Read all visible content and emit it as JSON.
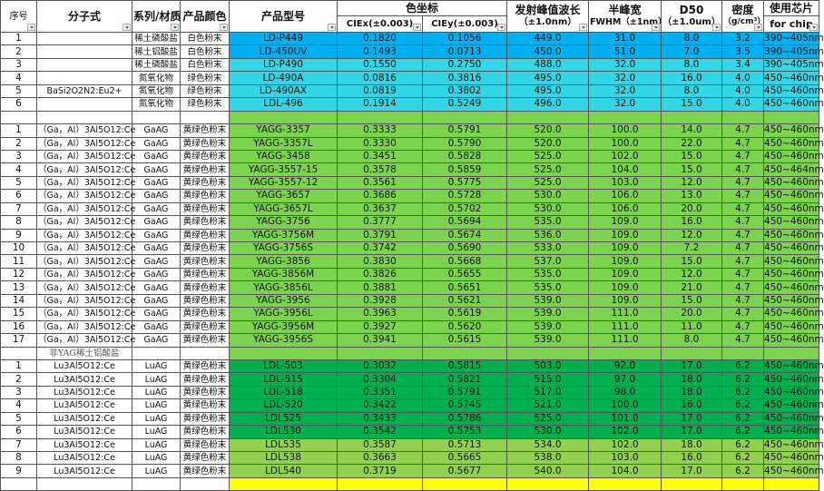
{
  "colors": {
    "blue": "#00b0f0",
    "cyan": "#31d7e6",
    "green": "#7cd44e",
    "dark_green": "#00b050",
    "light_green": "#92d050",
    "yellow": "#ffff00"
  },
  "header": {
    "seq": "序号",
    "formula": "分子式",
    "series": "系列/材质",
    "color": "产品颜色",
    "model": "产品型号",
    "cie": "色坐标",
    "ciex": "CIEx(±0.003)",
    "ciey": "CIEy(±0.003)",
    "wave": "发射峰值波长",
    "wave_sub": "（±1.0nm）",
    "fwhm": "半峰宽",
    "fwhm_sub": "FWHM（±1nm）",
    "d50": "D50",
    "d50_sub": "（±1.0um）",
    "density": "密度",
    "density_sub": "（g/cm³）",
    "chip": "使用芯片",
    "chip_sub": "for chip"
  },
  "rows": [
    {
      "c": "blue",
      "v": [
        "1",
        "",
        "稀土磷酸盐",
        "白色粉末",
        "LD-P449",
        "0.1820",
        "0.1056",
        "449.0",
        "31.0",
        "8.0",
        "3.2",
        "390~405nm"
      ]
    },
    {
      "c": "blue",
      "v": [
        "2",
        "",
        "稀土铝酸盐",
        "白色粉末",
        "LD-450UV",
        "0.1493",
        "0.0713",
        "450.0",
        "51.0",
        "7.0",
        "3.5",
        "390~405nm"
      ]
    },
    {
      "c": "cyan",
      "v": [
        "3",
        "",
        "稀土磷酸盐",
        "白色粉末",
        "LD-P490",
        "0.1550",
        "0.2750",
        "488.0",
        "32.0",
        "8.0",
        "3.4",
        "390~405nm"
      ]
    },
    {
      "c": "cyan",
      "v": [
        "4",
        "",
        "氮氧化物",
        "绿色粉末",
        "LD-490A",
        "0.0816",
        "0.3816",
        "495.0",
        "32.0",
        "16.0",
        "4.0",
        "450~460nm"
      ]
    },
    {
      "c": "cyan",
      "v": [
        "5",
        "BaSi2O2N2:Eu2+",
        "氮氧化物",
        "绿色粉末",
        "LD-490AX",
        "0.0819",
        "0.3802",
        "495.0",
        "32.0",
        "8.0",
        "4.0",
        "450~460nm"
      ]
    },
    {
      "c": "cyan",
      "v": [
        "6",
        "",
        "氮氧化物",
        "绿色粉末",
        "LDL-496",
        "0.1914",
        "0.5249",
        "496.0",
        "32.0",
        "15.0",
        "4.0",
        "450~460nm"
      ]
    },
    {
      "c": "green",
      "v": [
        "",
        "",
        "",
        "",
        "",
        "",
        "",
        "",
        "",
        "",
        "",
        ""
      ]
    },
    {
      "c": "green",
      "v": [
        "1",
        "（Ga，Al）3Al5O12:Ce",
        "GaAG",
        "黄绿色粉末",
        "YAGG-3357",
        "0.3333",
        "0.5791",
        "520.0",
        "100.0",
        "14.0",
        "4.7",
        "450~460nm"
      ]
    },
    {
      "c": "green",
      "v": [
        "2",
        "（Ga，Al）3Al5O12:Ce",
        "GaAG",
        "黄绿色粉末",
        "YAGG-3357L",
        "0.3330",
        "0.5790",
        "520.0",
        "100.0",
        "22.0",
        "4.7",
        "450~460nm"
      ]
    },
    {
      "c": "green",
      "v": [
        "3",
        "（Ga，Al）3Al5O12:Ce",
        "GaAG",
        "黄绿色粉末",
        "YAGG-3458",
        "0.3451",
        "0.5828",
        "525.0",
        "102.0",
        "15.0",
        "4.7",
        "450~460nm"
      ]
    },
    {
      "c": "green",
      "v": [
        "4",
        "（Ga，Al）3Al5O12:Ce",
        "GaAG",
        "黄绿色粉末",
        "YAGG-3557-15",
        "0.3578",
        "0.5859",
        "525.0",
        "104.0",
        "15.0",
        "4.7",
        "450~464nm"
      ]
    },
    {
      "c": "green",
      "v": [
        "5",
        "（Ga，Al）3Al5O12:Ce",
        "GaAG",
        "黄绿色粉末",
        "YAGG-3557-12",
        "0.3561",
        "0.5775",
        "525.0",
        "103.0",
        "12.0",
        "4.7",
        "450~460nm"
      ]
    },
    {
      "c": "green",
      "v": [
        "6",
        "（Ga，Al）3Al5O12:Ce",
        "GaAG",
        "黄绿色粉末",
        "YAGG-3657",
        "0.3686",
        "0.5728",
        "530.0",
        "106.0",
        "13.0",
        "4.7",
        "450~460nm"
      ]
    },
    {
      "c": "green",
      "v": [
        "7",
        "（Ga，Al）3Al5O12:Ce",
        "GaAG",
        "黄绿色粉末",
        "YAGG-3657L",
        "0.3637",
        "0.5702",
        "530.0",
        "106.0",
        "20.0",
        "4.7",
        "450~460nm"
      ]
    },
    {
      "c": "green",
      "v": [
        "8",
        "（Ga，Al）3Al5O12:Ce",
        "GaAG",
        "黄绿色粉末",
        "YAGG-3756",
        "0.3777",
        "0.5694",
        "535.0",
        "109.0",
        "16.0",
        "4.7",
        "450~460nm"
      ]
    },
    {
      "c": "green",
      "v": [
        "9",
        "（Ga，Al）3Al5O12:Ce",
        "GaAG",
        "黄绿色粉末",
        "YAGG-3756M",
        "0.3791",
        "0.5674",
        "536.0",
        "109.0",
        "12.0",
        "4.7",
        "450~460nm"
      ]
    },
    {
      "c": "green",
      "v": [
        "10",
        "（Ga，Al）3Al5O12:Ce",
        "GaAG",
        "黄绿色粉末",
        "YAGG-3756S",
        "0.3742",
        "0.5690",
        "533.0",
        "109.0",
        "7.2",
        "4.7",
        "450~460nm"
      ]
    },
    {
      "c": "green",
      "v": [
        "11",
        "（Ga，Al）3Al5O12:Ce",
        "GaAG",
        "黄绿色粉末",
        "YAGG-3856",
        "0.3830",
        "0.5668",
        "537.0",
        "109.0",
        "15.0",
        "4.7",
        "450~460nm"
      ]
    },
    {
      "c": "green",
      "v": [
        "12",
        "（Ga，Al）3Al5O12:Ce",
        "GaAG",
        "黄绿色粉末",
        "YAGG-3856M",
        "0.3826",
        "0.5655",
        "535.0",
        "109.0",
        "12.0",
        "4.7",
        "450~460nm"
      ]
    },
    {
      "c": "green",
      "v": [
        "13",
        "（Ga，Al）3Al5O12:Ce",
        "GaAG",
        "黄绿色粉末",
        "YAGG-3856L",
        "0.3881",
        "0.5651",
        "535.0",
        "109.0",
        "21.0",
        "4.7",
        "450~460nm"
      ]
    },
    {
      "c": "green",
      "v": [
        "14",
        "（Ga，Al）3Al5O12:Ce",
        "GaAG",
        "黄绿色粉末",
        "YAGG-3956",
        "0.3928",
        "0.5621",
        "539.0",
        "109.0",
        "15.0",
        "4.7",
        "450~460nm"
      ]
    },
    {
      "c": "green",
      "v": [
        "15",
        "（Ga，Al）3Al5O12:Ce",
        "GaAG",
        "黄绿色粉末",
        "YAGG-3956L",
        "0.3963",
        "0.5619",
        "539.0",
        "111.0",
        "20.0",
        "4.7",
        "450~460nm"
      ]
    },
    {
      "c": "green",
      "v": [
        "16",
        "（Ga，Al）3Al5O12:Ce",
        "GaAG",
        "黄绿色粉末",
        "YAGG-3956M",
        "0.3927",
        "0.5620",
        "539.0",
        "111.0",
        "11.0",
        "4.7",
        "450~460nm"
      ]
    },
    {
      "c": "green",
      "v": [
        "17",
        "（Ga，Al）3Al5O12:Ce",
        "GaAG",
        "黄绿色粉末",
        "YAGG-3956S",
        "0.3941",
        "0.5615",
        "539.0",
        "111.0",
        "8.0",
        "4.7",
        "450~460nm"
      ]
    },
    {
      "c": "green",
      "note": true,
      "v": [
        "",
        "非YAG稀土铝酸盐",
        "",
        "",
        "",
        "",
        "",
        "",
        "",
        "",
        "",
        ""
      ]
    },
    {
      "c": "dark_green",
      "v": [
        "1",
        "Lu3Al5O12:Ce",
        "LuAG",
        "黄绿色粉末",
        "LDL-503",
        "0.3032",
        "0.5815",
        "503.0",
        "92.0",
        "17.0",
        "6.2",
        "450~460nm"
      ]
    },
    {
      "c": "dark_green",
      "v": [
        "2",
        "Lu3Al5O12:Ce",
        "LuAG",
        "黄绿色粉末",
        "LDL-515",
        "0.3304",
        "0.5821",
        "515.0",
        "97.0",
        "18.0",
        "6.2",
        "450~460nm"
      ]
    },
    {
      "c": "dark_green",
      "v": [
        "3",
        "Lu3Al5O12:Ce",
        "LuAG",
        "黄绿色粉末",
        "LDL-518",
        "0.3351",
        "0.5791",
        "517.0",
        "98.0",
        "18.0",
        "6.2",
        "450~460nm"
      ]
    },
    {
      "c": "dark_green",
      "v": [
        "4",
        "Lu3Al5O12:Ce",
        "LuAG",
        "黄绿色粉末",
        "LDL-520",
        "0.3422",
        "0.5745",
        "521.0",
        "100.0",
        "16.0",
        "6.2",
        "450~460nm"
      ]
    },
    {
      "c": "dark_green",
      "v": [
        "5",
        "Lu3Al5O12:Ce",
        "LuAG",
        "黄绿色粉末",
        "LDL525",
        "0.3433",
        "0.5786",
        "525.0",
        "101.0",
        "17.0",
        "6.2",
        "450~460nm"
      ]
    },
    {
      "c": "dark_green",
      "v": [
        "6",
        "Lu3Al5O12:Ce",
        "LuAG",
        "黄绿色粉末",
        "LDL530",
        "0.3542",
        "0.5753",
        "530.0",
        "102.0",
        "17.0",
        "6.2",
        "450~460nm"
      ]
    },
    {
      "c": "light_green",
      "v": [
        "7",
        "Lu3Al5O12:Ce",
        "LuAG",
        "黄绿色粉末",
        "LDL535",
        "0.3587",
        "0.5713",
        "534.0",
        "102.0",
        "18.0",
        "6.2",
        "450~460nm"
      ]
    },
    {
      "c": "light_green",
      "v": [
        "8",
        "Lu3Al5O12:Ce",
        "LuAG",
        "黄绿色粉末",
        "LDL538",
        "0.3663",
        "0.5665",
        "538.0",
        "103.0",
        "16.0",
        "6.2",
        "450~460nm"
      ]
    },
    {
      "c": "light_green",
      "v": [
        "9",
        "Lu3Al5O12:Ce",
        "LuAG",
        "黄绿色粉末",
        "LDL540",
        "0.3719",
        "0.5677",
        "540.0",
        "104.0",
        "17.0",
        "6.2",
        "450~460nm"
      ]
    },
    {
      "c": "yellow",
      "v": [
        "",
        "",
        "",
        "",
        "",
        "",
        "",
        "",
        "",
        "",
        "",
        ""
      ]
    }
  ]
}
